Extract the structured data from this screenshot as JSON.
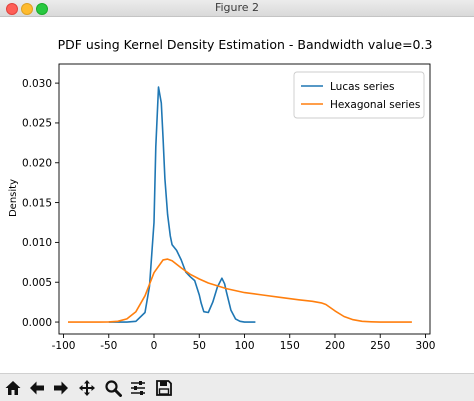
{
  "window": {
    "title": "Figure 2"
  },
  "toolbar": {
    "buttons": [
      {
        "name": "home-icon"
      },
      {
        "name": "back-arrow-icon"
      },
      {
        "name": "forward-arrow-icon"
      },
      {
        "name": "pan-move-icon"
      },
      {
        "name": "zoom-magnifier-icon"
      },
      {
        "name": "configure-subplots-icon"
      },
      {
        "name": "save-floppy-icon"
      }
    ]
  },
  "chart_data": {
    "type": "line",
    "title": "PDF using Kernel Density Estimation - Bandwidth value=0.3",
    "xlabel": "",
    "ylabel": "Density",
    "xlim": [
      -105,
      305
    ],
    "ylim": [
      -0.0015,
      0.0324
    ],
    "xticks": [
      -100,
      -50,
      0,
      50,
      100,
      150,
      200,
      250,
      300
    ],
    "yticks": [
      0.0,
      0.005,
      0.01,
      0.015,
      0.02,
      0.025,
      0.03
    ],
    "ytick_labels": [
      "0.000",
      "0.005",
      "0.010",
      "0.015",
      "0.020",
      "0.025",
      "0.030"
    ],
    "grid": false,
    "legend": "top-right",
    "series": [
      {
        "name": "Lucas series",
        "color": "#1f77b4",
        "x": [
          -50,
          -40,
          -30,
          -20,
          -10,
          -5,
          0,
          2,
          5,
          8,
          10,
          12,
          15,
          18,
          20,
          25,
          30,
          35,
          40,
          45,
          50,
          52,
          55,
          60,
          65,
          70,
          75,
          78,
          80,
          85,
          90,
          95,
          100,
          112
        ],
        "y": [
          0.0,
          0.0,
          0.0,
          0.0001,
          0.0012,
          0.0045,
          0.0125,
          0.022,
          0.0295,
          0.0275,
          0.023,
          0.018,
          0.0135,
          0.0108,
          0.0097,
          0.009,
          0.0078,
          0.0063,
          0.0057,
          0.0052,
          0.0034,
          0.0024,
          0.0013,
          0.0012,
          0.0025,
          0.0044,
          0.0055,
          0.0048,
          0.0038,
          0.0015,
          0.0004,
          0.0001,
          0.0,
          0.0
        ]
      },
      {
        "name": "Hexagonal series",
        "color": "#ff7f0e",
        "x": [
          -95,
          -80,
          -60,
          -50,
          -40,
          -30,
          -20,
          -10,
          0,
          10,
          15,
          20,
          30,
          40,
          50,
          60,
          80,
          100,
          120,
          140,
          160,
          175,
          185,
          190,
          200,
          210,
          220,
          230,
          240,
          250,
          260,
          270,
          280,
          285
        ],
        "y": [
          0.0,
          0.0,
          0.0,
          2e-05,
          0.0001,
          0.0004,
          0.0013,
          0.0033,
          0.0062,
          0.0078,
          0.0079,
          0.0077,
          0.0068,
          0.006,
          0.0054,
          0.0049,
          0.0042,
          0.0037,
          0.0034,
          0.0031,
          0.0028,
          0.0026,
          0.0024,
          0.0022,
          0.0014,
          0.0007,
          0.0003,
          0.0001,
          3e-05,
          0.0,
          0.0,
          0.0,
          0.0,
          0.0
        ]
      }
    ]
  }
}
